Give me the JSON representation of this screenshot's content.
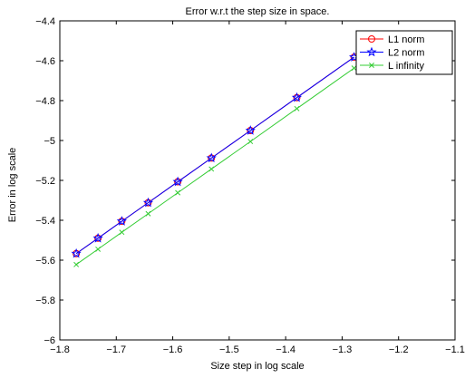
{
  "chart_data": {
    "type": "line",
    "title": "Error w.r.t the step size in space.",
    "xlabel": "Size step in log scale",
    "ylabel": "Error in log scale",
    "xlim": [
      -1.8,
      -1.1
    ],
    "ylim": [
      -6,
      -4.4
    ],
    "xticks": [
      -1.8,
      -1.7,
      -1.6,
      -1.5,
      -1.4,
      -1.3,
      -1.2,
      -1.1
    ],
    "xtick_labels": [
      "−1.8",
      "−1.7",
      "−1.6",
      "−1.5",
      "−1.4",
      "−1.3",
      "−1.2",
      "−1.1"
    ],
    "yticks": [
      -6,
      -5.8,
      -5.6,
      -5.4,
      -5.2,
      -5,
      -4.8,
      -4.6,
      -4.4
    ],
    "ytick_labels": [
      "−6",
      "−5.8",
      "−5.6",
      "−5.4",
      "−5.2",
      "−5",
      "−4.8",
      "−4.6",
      "−4.4"
    ],
    "grid": false,
    "legend_position": "top-right",
    "x": [
      -1.7709,
      -1.7324,
      -1.6902,
      -1.6435,
      -1.5911,
      -1.5315,
      -1.4624,
      -1.3802,
      -1.2788
    ],
    "series": [
      {
        "name": "L1 norm",
        "color": "#ff0000",
        "marker": "circle",
        "values": [
          -5.567,
          -5.49,
          -5.405,
          -5.312,
          -5.207,
          -5.088,
          -4.95,
          -4.785,
          -4.582
        ]
      },
      {
        "name": "L2 norm",
        "color": "#0000ff",
        "marker": "star",
        "values": [
          -5.567,
          -5.49,
          -5.405,
          -5.312,
          -5.207,
          -5.088,
          -4.95,
          -4.785,
          -4.582
        ]
      },
      {
        "name": "L infinity",
        "color": "#33cc33",
        "marker": "x",
        "values": [
          -5.622,
          -5.545,
          -5.46,
          -5.367,
          -5.262,
          -5.143,
          -5.005,
          -4.84,
          -4.637
        ]
      }
    ]
  }
}
